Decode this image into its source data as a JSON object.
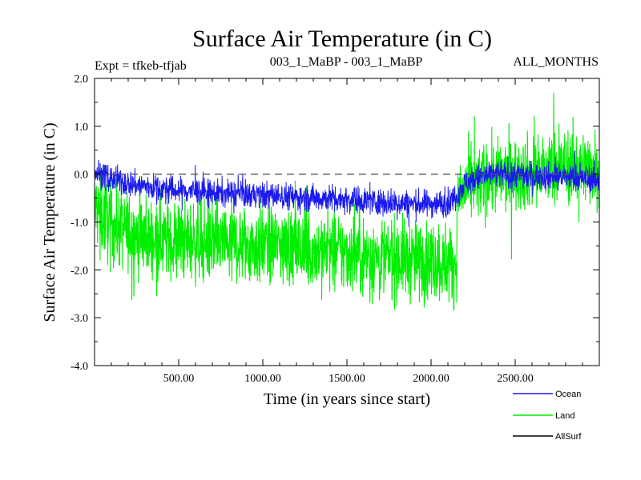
{
  "chart_data": {
    "type": "line",
    "title": "Surface Air Temperature (in C)",
    "subtitle_left": "Expt = tfkeb-tfjab",
    "subtitle_center": "003_1_MaBP - 003_1_MaBP",
    "subtitle_right": "ALL_MONTHS",
    "xlabel": "Time (in years since start)",
    "ylabel": "Surface Air Temperature (in C)",
    "xlim": [
      0,
      3000
    ],
    "ylim": [
      -4.0,
      2.0
    ],
    "x_ticks": [
      500,
      1000,
      1500,
      2000,
      2500
    ],
    "x_tick_labels": [
      "500.00",
      "1000.00",
      "1500.00",
      "2000.00",
      "2500.00"
    ],
    "y_ticks": [
      -4.0,
      -3.0,
      -2.0,
      -1.0,
      0.0,
      1.0,
      2.0
    ],
    "y_tick_labels": [
      "-4.0",
      "-3.0",
      "-2.0",
      "-1.0",
      "0.0",
      "1.0",
      "2.0"
    ],
    "reference_line": {
      "y": 0.0,
      "style": "dashed"
    },
    "grid": false,
    "legend_position": "bottom-right",
    "series": [
      {
        "name": "Land",
        "color": "#00ee00",
        "x": [
          0,
          100,
          200,
          300,
          400,
          500,
          600,
          700,
          800,
          900,
          1000,
          1100,
          1200,
          1300,
          1400,
          1500,
          1600,
          1700,
          1800,
          1900,
          2000,
          2100,
          2150,
          2160,
          2200,
          2300,
          2400,
          2500,
          2600,
          2700,
          2800,
          2900,
          3000
        ],
        "mean": [
          -0.7,
          -1.05,
          -1.2,
          -1.3,
          -1.35,
          -1.4,
          -1.4,
          -1.45,
          -1.45,
          -1.5,
          -1.5,
          -1.5,
          -1.55,
          -1.6,
          -1.6,
          -1.65,
          -1.7,
          -1.75,
          -1.75,
          -1.8,
          -1.8,
          -1.85,
          -1.85,
          -0.5,
          -0.3,
          -0.15,
          -0.05,
          0.0,
          0.05,
          0.1,
          0.15,
          0.15,
          0.15
        ],
        "spread": [
          0.6,
          0.6,
          0.6,
          0.6,
          0.6,
          0.6,
          0.6,
          0.6,
          0.6,
          0.6,
          0.6,
          0.6,
          0.6,
          0.6,
          0.6,
          0.6,
          0.6,
          0.6,
          0.6,
          0.6,
          0.6,
          0.6,
          0.6,
          0.55,
          0.55,
          0.55,
          0.55,
          0.55,
          0.55,
          0.55,
          0.55,
          0.55,
          0.55
        ]
      },
      {
        "name": "Ocean",
        "color": "#1a1aee",
        "x": [
          0,
          100,
          200,
          300,
          400,
          500,
          600,
          700,
          800,
          900,
          1000,
          1100,
          1200,
          1300,
          1400,
          1500,
          1600,
          1700,
          1800,
          1900,
          2000,
          2100,
          2150,
          2200,
          2300,
          2400,
          2500,
          2600,
          2700,
          2800,
          2900,
          3000
        ],
        "mean": [
          0.05,
          -0.1,
          -0.2,
          -0.25,
          -0.3,
          -0.35,
          -0.35,
          -0.4,
          -0.4,
          -0.42,
          -0.45,
          -0.45,
          -0.48,
          -0.5,
          -0.5,
          -0.52,
          -0.55,
          -0.58,
          -0.6,
          -0.62,
          -0.62,
          -0.6,
          -0.45,
          -0.2,
          -0.05,
          0.0,
          0.0,
          -0.05,
          -0.05,
          -0.05,
          -0.1,
          -0.1
        ],
        "spread": [
          0.2,
          0.2,
          0.2,
          0.2,
          0.2,
          0.2,
          0.2,
          0.2,
          0.2,
          0.2,
          0.2,
          0.2,
          0.2,
          0.2,
          0.2,
          0.2,
          0.2,
          0.2,
          0.2,
          0.2,
          0.2,
          0.2,
          0.2,
          0.2,
          0.2,
          0.2,
          0.2,
          0.2,
          0.2,
          0.2,
          0.2,
          0.2
        ]
      },
      {
        "name": "AllSurf",
        "color": "#000000",
        "visible": false
      }
    ],
    "legend": [
      {
        "label": "Ocean",
        "color": "#1a1aee"
      },
      {
        "label": "Land",
        "color": "#00ee00"
      },
      {
        "label": "AllSurf",
        "color": "#000000"
      }
    ]
  }
}
